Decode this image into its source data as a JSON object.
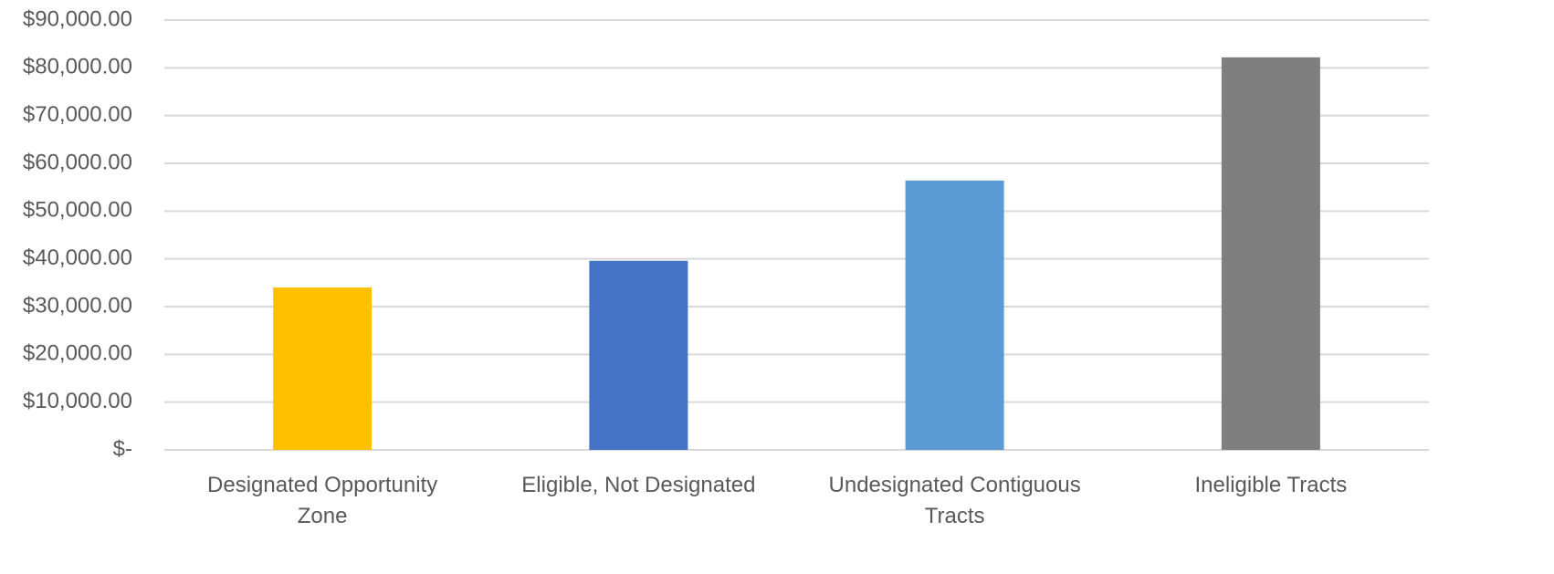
{
  "chart_data": {
    "type": "bar",
    "categories": [
      "Designated Opportunity Zone",
      "Eligible, Not Designated",
      "Undesignated Contiguous Tracts",
      "Ineligible Tracts"
    ],
    "values": [
      34000,
      39600,
      56400,
      82200
    ],
    "colors": [
      "#ffc000",
      "#4472c4",
      "#5b9bd5",
      "#7f7f7f"
    ],
    "ylim": [
      0,
      90000
    ],
    "yticks": [
      {
        "value": 0,
        "label": "$-"
      },
      {
        "value": 10000,
        "label": "$10,000.00"
      },
      {
        "value": 20000,
        "label": "$20,000.00"
      },
      {
        "value": 30000,
        "label": "$30,000.00"
      },
      {
        "value": 40000,
        "label": "$40,000.00"
      },
      {
        "value": 50000,
        "label": "$50,000.00"
      },
      {
        "value": 60000,
        "label": "$60,000.00"
      },
      {
        "value": 70000,
        "label": "$70,000.00"
      },
      {
        "value": 80000,
        "label": "$80,000.00"
      },
      {
        "value": 90000,
        "label": "$90,000.00"
      }
    ],
    "grid": true
  }
}
